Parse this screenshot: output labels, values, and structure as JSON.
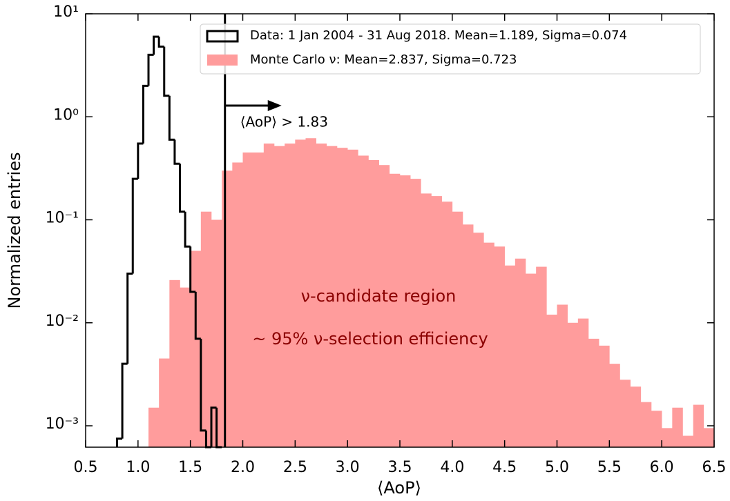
{
  "chart_data": {
    "type": "histogram",
    "xlabel": "⟨AoP⟩",
    "ylabel": "Normalized entries",
    "xlim": [
      0.5,
      6.5
    ],
    "ylim": [
      0.00062,
      10
    ],
    "ylog": true,
    "xticks": [
      0.5,
      {
        "value": 1,
        "label": "1.0"
      },
      1.5,
      {
        "value": 2,
        "label": "2.0"
      },
      2.5,
      {
        "value": 3,
        "label": "3.0"
      },
      3.5,
      {
        "value": 4,
        "label": "4.0"
      },
      4.5,
      {
        "value": 5,
        "label": "5.0"
      },
      5.5,
      {
        "value": 6,
        "label": "6.0"
      },
      6.5
    ],
    "yticks": [
      {
        "value": 10,
        "label": "10¹"
      },
      {
        "value": 1,
        "label": "10⁰"
      },
      {
        "value": 0.1,
        "label": "10⁻¹"
      },
      {
        "value": 0.01,
        "label": "10⁻²"
      },
      {
        "value": 0.001,
        "label": "10⁻³"
      }
    ],
    "legend": "upper right",
    "series": [
      {
        "name": "Data: 1 Jan 2004 - 31 Aug 2018. Mean=1.189, Sigma=0.074",
        "color": "#000000",
        "style": "step",
        "bins": [
          0.8,
          0.85,
          0.9,
          0.95,
          1.0,
          1.05,
          1.1,
          1.15,
          1.2,
          1.25,
          1.3,
          1.35,
          1.4,
          1.45,
          1.5,
          1.55,
          1.6,
          1.65,
          1.7,
          1.75,
          1.8
        ],
        "values": [
          0.00075,
          0.004,
          0.03,
          0.25,
          0.55,
          2.0,
          4.0,
          6.0,
          4.8,
          1.6,
          0.6,
          0.35,
          0.12,
          0.055,
          0.02,
          0.007,
          0.0009,
          0,
          0.0015,
          0
        ]
      },
      {
        "name": "Monte Carlo ν: Mean=2.837, Sigma=0.723",
        "color": "#ff9c9c",
        "style": "filled",
        "bins": [
          1.1,
          1.2,
          1.3,
          1.4,
          1.5,
          1.6,
          1.7,
          1.8,
          1.9,
          2.0,
          2.1,
          2.2,
          2.3,
          2.4,
          2.5,
          2.6,
          2.7,
          2.8,
          2.9,
          3.0,
          3.1,
          3.2,
          3.3,
          3.4,
          3.5,
          3.6,
          3.7,
          3.8,
          3.9,
          4.0,
          4.1,
          4.2,
          4.3,
          4.4,
          4.5,
          4.6,
          4.7,
          4.8,
          4.9,
          5.0,
          5.1,
          5.2,
          5.3,
          5.4,
          5.5,
          5.6,
          5.7,
          5.8,
          5.9,
          6.0,
          6.1,
          6.2,
          6.3,
          6.4,
          6.5
        ],
        "values": [
          0.0015,
          0.0045,
          0.026,
          0.022,
          0.05,
          0.12,
          0.1,
          0.3,
          0.36,
          0.45,
          0.45,
          0.55,
          0.52,
          0.55,
          0.6,
          0.62,
          0.55,
          0.52,
          0.5,
          0.48,
          0.42,
          0.38,
          0.34,
          0.28,
          0.27,
          0.25,
          0.18,
          0.17,
          0.15,
          0.12,
          0.09,
          0.075,
          0.06,
          0.055,
          0.036,
          0.042,
          0.03,
          0.035,
          0.012,
          0.015,
          0.01,
          0.011,
          0.007,
          0.006,
          0.004,
          0.0028,
          0.0024,
          0.0017,
          0.0014,
          0.00095,
          0.0015,
          0.0008,
          0.0016,
          0.00095
        ]
      }
    ],
    "cut": {
      "value": 1.83,
      "label": "⟨AoP⟩ > 1.83"
    },
    "annotations": [
      {
        "text": "ν-candidate region",
        "color": "#8b0000"
      },
      {
        "text": "~ 95% ν-selection efficiency",
        "color": "#8b0000"
      }
    ]
  }
}
